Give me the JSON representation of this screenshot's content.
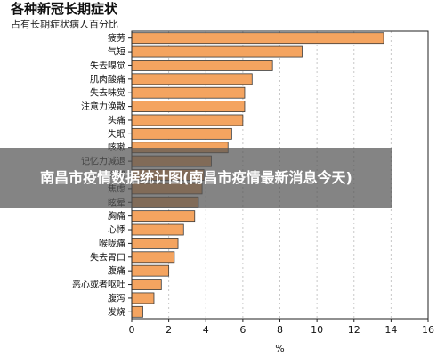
{
  "chart_data": {
    "type": "bar",
    "orientation": "horizontal",
    "title": "各种新冠长期症状",
    "subtitle": "占有长期症状病人百分比",
    "xlabel": "%",
    "xlim": [
      0,
      16
    ],
    "xticks": [
      0,
      2,
      4,
      6,
      8,
      10,
      12,
      14,
      16
    ],
    "grid": true,
    "bar_color": "#f4a460",
    "categories": [
      "疲劳",
      "气短",
      "失去嗅觉",
      "肌肉酸痛",
      "失去味觉",
      "注意力涣散",
      "头痛",
      "失眠",
      "咳嗽",
      "记忆力减退",
      "抑郁",
      "焦虑",
      "眩晕",
      "胸痛",
      "心悸",
      "喉咙痛",
      "失去胃口",
      "腹痛",
      "恶心或者呕吐",
      "腹泻",
      "发烧"
    ],
    "values": [
      13.6,
      9.2,
      7.6,
      6.5,
      6.1,
      6.1,
      6.0,
      5.4,
      5.2,
      4.3,
      3.9,
      3.8,
      3.6,
      3.4,
      2.8,
      2.5,
      2.3,
      2.0,
      1.6,
      1.2,
      0.6
    ]
  },
  "overlay": {
    "text": "南昌市疫情数据统计图(南昌市疫情最新消息今天)"
  }
}
